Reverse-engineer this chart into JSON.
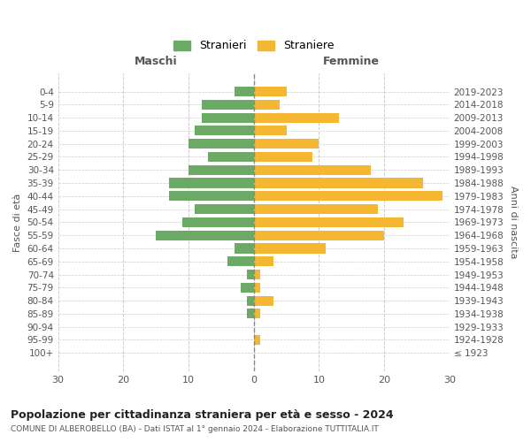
{
  "age_groups": [
    "0-4",
    "5-9",
    "10-14",
    "15-19",
    "20-24",
    "25-29",
    "30-34",
    "35-39",
    "40-44",
    "45-49",
    "50-54",
    "55-59",
    "60-64",
    "65-69",
    "70-74",
    "75-79",
    "80-84",
    "85-89",
    "90-94",
    "95-99",
    "100+"
  ],
  "birth_years": [
    "2019-2023",
    "2014-2018",
    "2009-2013",
    "2004-2008",
    "1999-2003",
    "1994-1998",
    "1989-1993",
    "1984-1988",
    "1979-1983",
    "1974-1978",
    "1969-1973",
    "1964-1968",
    "1959-1963",
    "1954-1958",
    "1949-1953",
    "1944-1948",
    "1939-1943",
    "1934-1938",
    "1929-1933",
    "1924-1928",
    "≤ 1923"
  ],
  "males": [
    3,
    8,
    8,
    9,
    10,
    7,
    10,
    13,
    13,
    9,
    11,
    15,
    3,
    4,
    1,
    2,
    1,
    1,
    0,
    0,
    0
  ],
  "females": [
    5,
    4,
    13,
    5,
    10,
    9,
    18,
    26,
    29,
    19,
    23,
    20,
    11,
    3,
    1,
    1,
    3,
    1,
    0,
    1,
    0
  ],
  "male_color": "#6aaa64",
  "female_color": "#f5b731",
  "background_color": "#ffffff",
  "grid_color": "#cccccc",
  "title": "Popolazione per cittadinanza straniera per età e sesso - 2024",
  "subtitle": "COMUNE DI ALBEROBELLO (BA) - Dati ISTAT al 1° gennaio 2024 - Elaborazione TUTTITALIA.IT",
  "left_label": "Maschi",
  "right_label": "Femmine",
  "y_label": "Fasce di età",
  "right_y_label": "Anni di nascita",
  "legend_stranieri": "Stranieri",
  "legend_straniere": "Straniere",
  "xlim": 30
}
